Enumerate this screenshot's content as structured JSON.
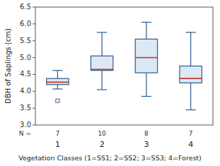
{
  "chart_data": {
    "type": "box",
    "ylabel": "DBH of Saplings (cm)",
    "xlabel": "Vegetation Classes (1=SS1; 2=SS2; 3=SS3; 4=Forest)",
    "n_label": "N =",
    "categories": [
      "1",
      "2",
      "3",
      "4"
    ],
    "n": [
      7,
      10,
      8,
      7
    ],
    "boxes": [
      {
        "whisker_low": 4.07,
        "q1": 4.2,
        "median": 4.27,
        "q3": 4.38,
        "whisker_high": 4.62,
        "outliers": [
          3.72
        ]
      },
      {
        "whisker_low": 4.05,
        "q1": 4.62,
        "median": 4.65,
        "q3": 5.05,
        "whisker_high": 5.75,
        "outliers": []
      },
      {
        "whisker_low": 3.85,
        "q1": 4.55,
        "median": 5.0,
        "q3": 5.55,
        "whisker_high": 6.05,
        "outliers": []
      },
      {
        "whisker_low": 3.45,
        "q1": 4.25,
        "median": 4.38,
        "q3": 4.75,
        "whisker_high": 5.75,
        "outliers": []
      }
    ],
    "ylim": [
      3.0,
      6.5
    ],
    "yticks": [
      {
        "value": 3.0,
        "label": "3.0"
      },
      3.5,
      {
        "value": 4.0,
        "label": "4.0"
      },
      4.5,
      {
        "value": 5.0,
        "label": "5.0"
      },
      5.5,
      {
        "value": 6.0,
        "label": "6.0"
      },
      6.5
    ],
    "grid": false
  }
}
